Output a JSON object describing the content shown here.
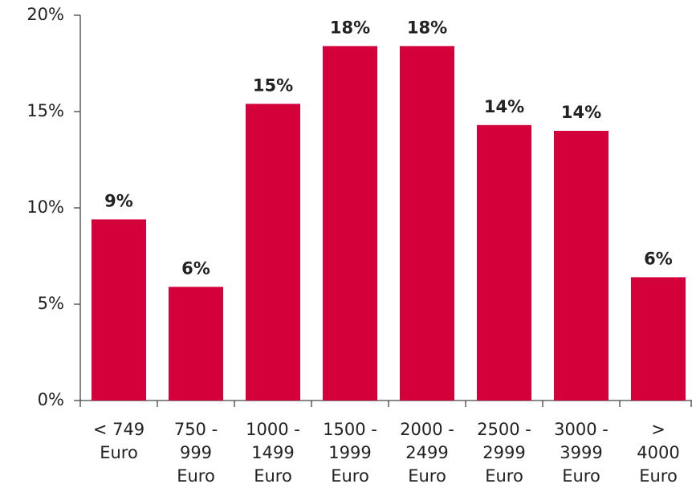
{
  "chart_data": {
    "type": "bar",
    "categories": [
      "< 749\nEuro",
      "750 -\n999\nEuro",
      "1000 -\n1499\nEuro",
      "1500 -\n1999\nEuro",
      "2000 -\n2499\nEuro",
      "2500 -\n2999\nEuro",
      "3000 -\n3999\nEuro",
      ">\n4000\nEuro"
    ],
    "values": [
      9.4,
      5.9,
      15.4,
      18.4,
      18.4,
      14.3,
      14.0,
      6.4
    ],
    "value_labels": [
      "9%",
      "6%",
      "15%",
      "18%",
      "18%",
      "14%",
      "14%",
      "6%"
    ],
    "color": "#d4003a",
    "ylim": [
      0,
      20
    ],
    "yticks": [
      {
        "value": 0,
        "label": "0%"
      },
      {
        "value": 5,
        "label": "5%"
      },
      {
        "value": 10,
        "label": "10%"
      },
      {
        "value": 15,
        "label": "15%"
      },
      {
        "value": 20,
        "label": "20%"
      }
    ],
    "grid": false
  }
}
